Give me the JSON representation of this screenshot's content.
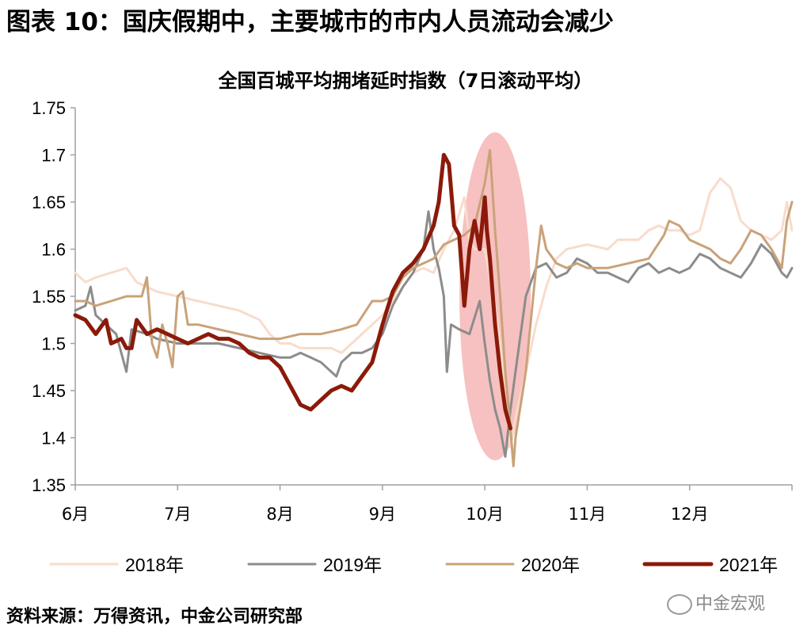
{
  "figure_title": "图表 10：国庆假期中，主要城市的市内人员流动会减少",
  "source": "资料来源：万得资讯，中金公司研究部",
  "watermark": "中金宏观",
  "chart_data": {
    "type": "line",
    "title": "全国百城平均拥堵延时指数（7日滚动平均）",
    "ylim": [
      1.35,
      1.75
    ],
    "yticks": [
      "1.35",
      "1.4",
      "1.45",
      "1.5",
      "1.55",
      "1.6",
      "1.65",
      "1.7",
      "1.75"
    ],
    "ytick_values": [
      1.35,
      1.4,
      1.45,
      1.5,
      1.55,
      1.6,
      1.65,
      1.7,
      1.75
    ],
    "xlim": [
      0,
      7
    ],
    "xticks": [
      "6月",
      "7月",
      "8月",
      "9月",
      "10月",
      "11月",
      "12月"
    ],
    "xtick_values": [
      0,
      1,
      2,
      3,
      4,
      5,
      6
    ],
    "grid": false,
    "legend_position": "bottom",
    "highlight": {
      "shape": "ellipse",
      "x_center": 4.1,
      "y_center": 1.55,
      "color": "#f4a6a6"
    },
    "series": [
      {
        "name": "2018年",
        "color": "#f8dccc",
        "width": 3,
        "points": [
          [
            0,
            1.575
          ],
          [
            0.1,
            1.565
          ],
          [
            0.2,
            1.57
          ],
          [
            0.35,
            1.575
          ],
          [
            0.5,
            1.58
          ],
          [
            0.6,
            1.565
          ],
          [
            0.8,
            1.555
          ],
          [
            1.0,
            1.55
          ],
          [
            1.2,
            1.545
          ],
          [
            1.4,
            1.54
          ],
          [
            1.6,
            1.535
          ],
          [
            1.8,
            1.525
          ],
          [
            1.9,
            1.51
          ],
          [
            2.0,
            1.5
          ],
          [
            2.1,
            1.5
          ],
          [
            2.2,
            1.495
          ],
          [
            2.3,
            1.495
          ],
          [
            2.5,
            1.495
          ],
          [
            2.6,
            1.49
          ],
          [
            2.7,
            1.5
          ],
          [
            2.8,
            1.51
          ],
          [
            2.9,
            1.52
          ],
          [
            3.0,
            1.53
          ],
          [
            3.1,
            1.545
          ],
          [
            3.2,
            1.56
          ],
          [
            3.3,
            1.575
          ],
          [
            3.4,
            1.58
          ],
          [
            3.5,
            1.575
          ],
          [
            3.6,
            1.6
          ],
          [
            3.7,
            1.62
          ],
          [
            3.8,
            1.655
          ],
          [
            3.85,
            1.61
          ],
          [
            3.9,
            1.6
          ],
          [
            4.0,
            1.6
          ],
          [
            4.05,
            1.57
          ],
          [
            4.1,
            1.54
          ],
          [
            4.15,
            1.5
          ],
          [
            4.2,
            1.44
          ],
          [
            4.25,
            1.39
          ],
          [
            4.3,
            1.42
          ],
          [
            4.4,
            1.47
          ],
          [
            4.5,
            1.52
          ],
          [
            4.6,
            1.56
          ],
          [
            4.7,
            1.59
          ],
          [
            4.8,
            1.6
          ],
          [
            5.0,
            1.605
          ],
          [
            5.2,
            1.6
          ],
          [
            5.3,
            1.61
          ],
          [
            5.5,
            1.61
          ],
          [
            5.6,
            1.62
          ],
          [
            5.7,
            1.625
          ],
          [
            5.8,
            1.62
          ],
          [
            5.9,
            1.62
          ],
          [
            6.0,
            1.615
          ],
          [
            6.1,
            1.62
          ],
          [
            6.2,
            1.66
          ],
          [
            6.3,
            1.675
          ],
          [
            6.4,
            1.665
          ],
          [
            6.5,
            1.63
          ],
          [
            6.6,
            1.62
          ],
          [
            6.7,
            1.615
          ],
          [
            6.8,
            1.61
          ],
          [
            6.9,
            1.62
          ],
          [
            6.95,
            1.65
          ],
          [
            7.0,
            1.62
          ]
        ]
      },
      {
        "name": "2019年",
        "color": "#8c8c8c",
        "width": 3,
        "points": [
          [
            0,
            1.535
          ],
          [
            0.1,
            1.54
          ],
          [
            0.15,
            1.56
          ],
          [
            0.2,
            1.53
          ],
          [
            0.3,
            1.52
          ],
          [
            0.4,
            1.51
          ],
          [
            0.5,
            1.47
          ],
          [
            0.55,
            1.515
          ],
          [
            0.7,
            1.51
          ],
          [
            0.8,
            1.505
          ],
          [
            1.0,
            1.5
          ],
          [
            1.2,
            1.5
          ],
          [
            1.4,
            1.5
          ],
          [
            1.6,
            1.495
          ],
          [
            1.8,
            1.49
          ],
          [
            2.0,
            1.485
          ],
          [
            2.1,
            1.485
          ],
          [
            2.2,
            1.49
          ],
          [
            2.3,
            1.485
          ],
          [
            2.4,
            1.48
          ],
          [
            2.5,
            1.47
          ],
          [
            2.55,
            1.465
          ],
          [
            2.6,
            1.48
          ],
          [
            2.7,
            1.49
          ],
          [
            2.8,
            1.49
          ],
          [
            2.9,
            1.495
          ],
          [
            3.0,
            1.51
          ],
          [
            3.1,
            1.54
          ],
          [
            3.2,
            1.56
          ],
          [
            3.3,
            1.575
          ],
          [
            3.4,
            1.6
          ],
          [
            3.45,
            1.64
          ],
          [
            3.5,
            1.6
          ],
          [
            3.55,
            1.58
          ],
          [
            3.6,
            1.55
          ],
          [
            3.63,
            1.47
          ],
          [
            3.67,
            1.52
          ],
          [
            3.75,
            1.515
          ],
          [
            3.85,
            1.51
          ],
          [
            3.95,
            1.545
          ],
          [
            4.0,
            1.5
          ],
          [
            4.05,
            1.46
          ],
          [
            4.1,
            1.43
          ],
          [
            4.15,
            1.41
          ],
          [
            4.2,
            1.38
          ],
          [
            4.25,
            1.43
          ],
          [
            4.3,
            1.47
          ],
          [
            4.4,
            1.55
          ],
          [
            4.5,
            1.58
          ],
          [
            4.6,
            1.585
          ],
          [
            4.7,
            1.57
          ],
          [
            4.8,
            1.575
          ],
          [
            4.9,
            1.59
          ],
          [
            5.0,
            1.585
          ],
          [
            5.1,
            1.575
          ],
          [
            5.2,
            1.575
          ],
          [
            5.3,
            1.57
          ],
          [
            5.4,
            1.565
          ],
          [
            5.5,
            1.58
          ],
          [
            5.6,
            1.585
          ],
          [
            5.7,
            1.575
          ],
          [
            5.8,
            1.58
          ],
          [
            5.9,
            1.575
          ],
          [
            6.0,
            1.58
          ],
          [
            6.1,
            1.595
          ],
          [
            6.2,
            1.59
          ],
          [
            6.3,
            1.58
          ],
          [
            6.4,
            1.575
          ],
          [
            6.5,
            1.57
          ],
          [
            6.6,
            1.585
          ],
          [
            6.7,
            1.605
          ],
          [
            6.8,
            1.595
          ],
          [
            6.9,
            1.575
          ],
          [
            6.95,
            1.57
          ],
          [
            7.0,
            1.58
          ]
        ]
      },
      {
        "name": "2020年",
        "color": "#c9a27a",
        "width": 3,
        "points": [
          [
            0,
            1.545
          ],
          [
            0.1,
            1.545
          ],
          [
            0.2,
            1.54
          ],
          [
            0.35,
            1.545
          ],
          [
            0.5,
            1.55
          ],
          [
            0.65,
            1.55
          ],
          [
            0.7,
            1.57
          ],
          [
            0.75,
            1.5
          ],
          [
            0.8,
            1.485
          ],
          [
            0.85,
            1.52
          ],
          [
            0.9,
            1.5
          ],
          [
            0.95,
            1.475
          ],
          [
            1.0,
            1.55
          ],
          [
            1.05,
            1.555
          ],
          [
            1.1,
            1.52
          ],
          [
            1.2,
            1.52
          ],
          [
            1.4,
            1.515
          ],
          [
            1.6,
            1.51
          ],
          [
            1.8,
            1.505
          ],
          [
            2.0,
            1.505
          ],
          [
            2.2,
            1.51
          ],
          [
            2.4,
            1.51
          ],
          [
            2.6,
            1.515
          ],
          [
            2.75,
            1.52
          ],
          [
            2.9,
            1.545
          ],
          [
            3.0,
            1.545
          ],
          [
            3.1,
            1.55
          ],
          [
            3.2,
            1.57
          ],
          [
            3.3,
            1.58
          ],
          [
            3.4,
            1.585
          ],
          [
            3.5,
            1.59
          ],
          [
            3.6,
            1.605
          ],
          [
            3.7,
            1.61
          ],
          [
            3.8,
            1.615
          ],
          [
            3.9,
            1.625
          ],
          [
            4.0,
            1.67
          ],
          [
            4.05,
            1.705
          ],
          [
            4.1,
            1.62
          ],
          [
            4.15,
            1.55
          ],
          [
            4.2,
            1.47
          ],
          [
            4.25,
            1.41
          ],
          [
            4.28,
            1.37
          ],
          [
            4.3,
            1.4
          ],
          [
            4.4,
            1.47
          ],
          [
            4.5,
            1.58
          ],
          [
            4.55,
            1.625
          ],
          [
            4.6,
            1.6
          ],
          [
            4.7,
            1.585
          ],
          [
            4.8,
            1.58
          ],
          [
            4.9,
            1.585
          ],
          [
            5.0,
            1.58
          ],
          [
            5.2,
            1.58
          ],
          [
            5.4,
            1.585
          ],
          [
            5.6,
            1.59
          ],
          [
            5.75,
            1.615
          ],
          [
            5.8,
            1.63
          ],
          [
            5.9,
            1.625
          ],
          [
            6.0,
            1.61
          ],
          [
            6.1,
            1.605
          ],
          [
            6.2,
            1.6
          ],
          [
            6.3,
            1.59
          ],
          [
            6.4,
            1.585
          ],
          [
            6.5,
            1.6
          ],
          [
            6.6,
            1.62
          ],
          [
            6.7,
            1.615
          ],
          [
            6.8,
            1.6
          ],
          [
            6.9,
            1.58
          ],
          [
            6.95,
            1.63
          ],
          [
            7.0,
            1.65
          ]
        ]
      },
      {
        "name": "2021年",
        "color": "#8b1a0a",
        "width": 5,
        "points": [
          [
            0,
            1.53
          ],
          [
            0.1,
            1.525
          ],
          [
            0.2,
            1.51
          ],
          [
            0.3,
            1.525
          ],
          [
            0.35,
            1.5
          ],
          [
            0.45,
            1.505
          ],
          [
            0.5,
            1.495
          ],
          [
            0.55,
            1.495
          ],
          [
            0.6,
            1.525
          ],
          [
            0.7,
            1.51
          ],
          [
            0.8,
            1.515
          ],
          [
            0.9,
            1.51
          ],
          [
            1.0,
            1.505
          ],
          [
            1.1,
            1.5
          ],
          [
            1.2,
            1.505
          ],
          [
            1.3,
            1.51
          ],
          [
            1.4,
            1.505
          ],
          [
            1.5,
            1.505
          ],
          [
            1.6,
            1.5
          ],
          [
            1.7,
            1.49
          ],
          [
            1.8,
            1.485
          ],
          [
            1.9,
            1.485
          ],
          [
            2.0,
            1.475
          ],
          [
            2.1,
            1.455
          ],
          [
            2.2,
            1.435
          ],
          [
            2.3,
            1.43
          ],
          [
            2.4,
            1.44
          ],
          [
            2.5,
            1.45
          ],
          [
            2.6,
            1.455
          ],
          [
            2.7,
            1.45
          ],
          [
            2.8,
            1.465
          ],
          [
            2.9,
            1.48
          ],
          [
            3.0,
            1.52
          ],
          [
            3.1,
            1.555
          ],
          [
            3.2,
            1.575
          ],
          [
            3.3,
            1.585
          ],
          [
            3.4,
            1.6
          ],
          [
            3.5,
            1.625
          ],
          [
            3.55,
            1.65
          ],
          [
            3.6,
            1.7
          ],
          [
            3.65,
            1.69
          ],
          [
            3.7,
            1.625
          ],
          [
            3.75,
            1.615
          ],
          [
            3.8,
            1.54
          ],
          [
            3.85,
            1.6
          ],
          [
            3.9,
            1.63
          ],
          [
            3.95,
            1.6
          ],
          [
            4.0,
            1.655
          ],
          [
            4.02,
            1.62
          ],
          [
            4.05,
            1.59
          ],
          [
            4.1,
            1.52
          ],
          [
            4.15,
            1.47
          ],
          [
            4.2,
            1.43
          ],
          [
            4.25,
            1.41
          ]
        ]
      }
    ]
  }
}
